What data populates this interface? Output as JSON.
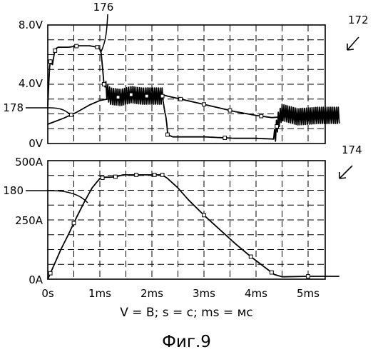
{
  "chart_data": [
    {
      "type": "line",
      "ref": "172",
      "y_ticks": [
        "8.0V",
        "4.0V",
        "0V"
      ],
      "ylim": [
        0,
        8
      ],
      "grid": true,
      "series": [
        {
          "label_ref": "176",
          "x": [
            0,
            0.03,
            0.06,
            0.08,
            0.12,
            0.15,
            0.2,
            0.4,
            0.6,
            0.8,
            0.95,
            1.02,
            1.05,
            1.08,
            1.12,
            1.2,
            1.4,
            1.6,
            1.8,
            2.0,
            2.2,
            2.25,
            2.28,
            2.3,
            2.4,
            2.6,
            2.8,
            3.0,
            3.3,
            3.6,
            4.0,
            4.35,
            4.42,
            4.5,
            4.8,
            5.2,
            5.6
          ],
          "y": [
            2.5,
            5.0,
            5.8,
            5.1,
            6.0,
            6.4,
            6.5,
            6.5,
            6.6,
            6.6,
            6.5,
            6.3,
            5.2,
            4.0,
            3.6,
            3.2,
            3.1,
            3.3,
            3.2,
            3.2,
            3.2,
            2.1,
            1.6,
            0.6,
            0.45,
            0.45,
            0.45,
            0.45,
            0.4,
            0.35,
            0.35,
            0.3,
            1.5,
            2.1,
            1.8,
            1.9,
            1.9
          ],
          "noisy_ranges": [
            [
              1.1,
              2.2
            ],
            [
              4.35,
              5.6
            ]
          ],
          "marker_x": [
            0.05,
            0.14,
            0.55,
            0.95,
            1.08,
            1.35,
            1.6,
            1.9,
            2.2,
            2.3,
            3.4,
            4.4
          ]
        },
        {
          "label_ref": "178",
          "x": [
            0,
            0.3,
            0.55,
            0.8,
            1.0,
            1.3,
            1.7,
            2.0,
            2.2,
            2.3,
            2.8,
            3.3,
            3.6,
            4.0,
            4.3,
            4.5,
            5.0,
            5.6
          ],
          "y": [
            1.3,
            1.7,
            2.1,
            2.6,
            2.9,
            3.1,
            3.2,
            3.3,
            3.3,
            3.2,
            2.8,
            2.4,
            2.15,
            1.9,
            1.75,
            1.8,
            1.9,
            1.9
          ],
          "marker_x": [
            0.45,
            2.15,
            2.55,
            3.0,
            3.5,
            4.1
          ]
        }
      ]
    },
    {
      "type": "line",
      "ref": "174",
      "y_ticks": [
        "500A",
        "250A",
        "0A"
      ],
      "ylim": [
        0,
        500
      ],
      "grid": true,
      "x_ticks": [
        "0s",
        "1ms",
        "2ms",
        "3ms",
        "4ms",
        "5ms"
      ],
      "xlim": [
        0,
        5.6
      ],
      "series": [
        {
          "label_ref": "180",
          "x": [
            0,
            0.12,
            0.25,
            0.4,
            0.55,
            0.7,
            0.85,
            1.0,
            1.1,
            1.2,
            1.3,
            1.45,
            1.7,
            2.0,
            2.2,
            2.3,
            2.5,
            2.7,
            3.0,
            3.3,
            3.6,
            3.9,
            4.2,
            4.35,
            4.5,
            5.0,
            5.6
          ],
          "y": [
            0,
            60,
            125,
            190,
            260,
            325,
            385,
            425,
            430,
            430,
            432,
            440,
            440,
            440,
            440,
            425,
            385,
            335,
            270,
            210,
            150,
            95,
            45,
            20,
            10,
            12,
            12
          ],
          "marker_x": [
            0.05,
            0.5,
            1.05,
            1.3,
            1.7,
            2.05,
            2.2,
            3.0,
            3.9,
            4.3,
            5.0
          ]
        }
      ]
    }
  ],
  "labels": {
    "fig_a": "172",
    "fig_b": "174",
    "curve_176": "176",
    "curve_178": "178",
    "curve_180": "180",
    "extra_x_tick": "5ms"
  },
  "legend_note": "V = B; s = c; ms = мс",
  "figure_label": "Фиг.9",
  "colors": {
    "ink": "#000000",
    "grid": "#000000",
    "background": "#ffffff"
  }
}
